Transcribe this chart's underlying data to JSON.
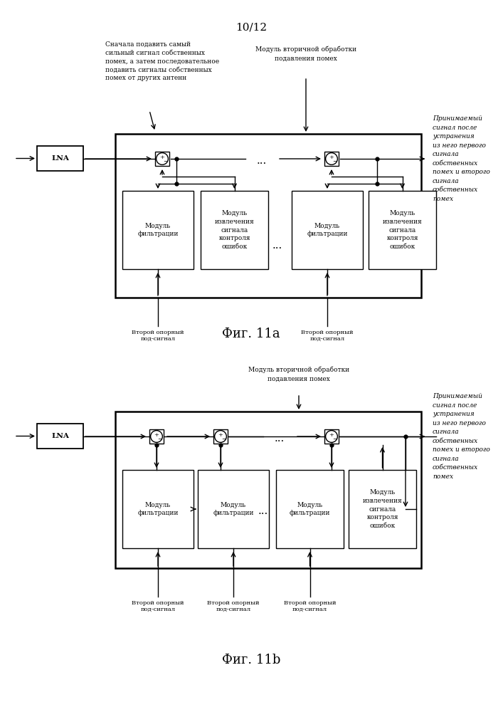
{
  "page_label": "10/12",
  "fig11a": {
    "caption": "Фиг. 11а",
    "annotation_top": "Сначала подавить самый\nсильный сигнал собственных\nпомех, а затем последовательное\nподавить сигналы собственных\nпомех от других антенн",
    "module_label_top": "Модуль вторичной обработки\nподавления помех",
    "right_label": "Принимаемый\nсигнал после\nустранения\nиз него первого\nсигнала\nсобственных\nпомех и второго\nсигнала\nсобственных\nпомех",
    "lna_label": "LNA",
    "filter_label": "Модуль\nфильтрации",
    "error_label": "Модуль\nизвлечения\nсигнала\nконтроля\nошибок",
    "ref_label1": "Второй опорный\nпод-сигнал",
    "ref_label2": "Второй опорный\nпод-сигнал"
  },
  "fig11b": {
    "caption": "Фиг. 11b",
    "module_label_top": "Модуль вторичной обработки\nподавления помех",
    "right_label": "Принимаемый\nсигнал после\nустранения\nиз него первого\nсигнала\nсобственных\nпомех и второго\nсигнала\nсобственных\nпомех",
    "lna_label": "LNA",
    "filter_label": "Модуль\nфильтрации",
    "error_label": "Модуль\nизвлечения\nсигнала\nконтроля\nошибок",
    "ref_label1": "Второй опорный\nпод-сигнал",
    "ref_label2": "Второй опорный\nпод-сигнал",
    "ref_label3": "Второй опорный\nпод-сигнал"
  },
  "bg_color": "#ffffff",
  "box_color": "#000000",
  "text_color": "#000000"
}
